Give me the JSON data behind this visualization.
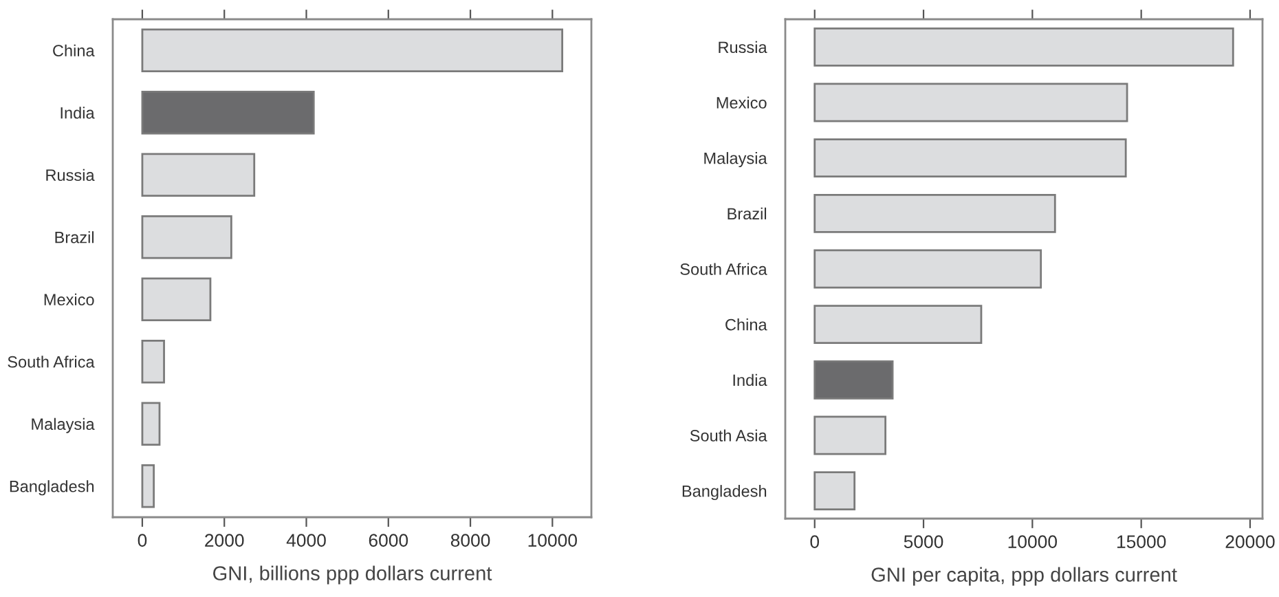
{
  "chart_data": [
    {
      "type": "bar",
      "orientation": "horizontal",
      "xlabel": "GNI, billions ppp dollars current",
      "categories": [
        "China",
        "India",
        "Russia",
        "Brazil",
        "Mexico",
        "South Africa",
        "Malaysia",
        "Bangladesh"
      ],
      "values": [
        10240,
        4180,
        2730,
        2170,
        1660,
        530,
        420,
        280
      ],
      "colors": [
        "#dcdddf",
        "#6b6b6d",
        "#dcdddf",
        "#dcdddf",
        "#dcdddf",
        "#dcdddf",
        "#dcdddf",
        "#dcdddf"
      ],
      "xlim": [
        -720,
        10950
      ],
      "xticks": [
        0,
        2000,
        4000,
        6000,
        8000,
        10000
      ],
      "grid": false
    },
    {
      "type": "bar",
      "orientation": "horizontal",
      "xlabel": "GNI per capita, ppp dollars current",
      "categories": [
        "Russia",
        "Mexico",
        "Malaysia",
        "Brazil",
        "South Africa",
        "China",
        "India",
        "South Asia",
        "Bangladesh"
      ],
      "values": [
        19220,
        14350,
        14290,
        11040,
        10390,
        7650,
        3580,
        3250,
        1830
      ],
      "colors": [
        "#dcdddf",
        "#dcdddf",
        "#dcdddf",
        "#dcdddf",
        "#dcdddf",
        "#dcdddf",
        "#6b6b6d",
        "#dcdddf",
        "#dcdddf"
      ],
      "xlim": [
        -1350,
        20570
      ],
      "xticks": [
        0,
        5000,
        10000,
        15000,
        20000
      ],
      "grid": false
    }
  ]
}
